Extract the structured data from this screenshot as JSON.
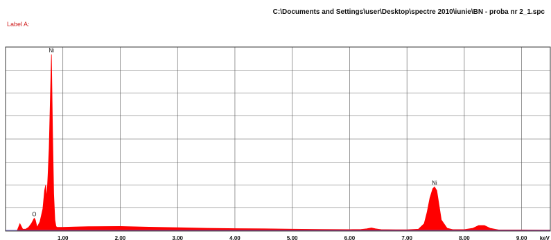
{
  "header": {
    "file_path": "C:\\Documents and Settings\\user\\Desktop\\spectre 2010\\iunie\\BN - proba nr 2_1.spc",
    "label_a": "Label A:"
  },
  "chart_data": {
    "type": "area",
    "title": "",
    "xlabel": "keV",
    "ylabel": "",
    "xlim": [
      0.0,
      9.5
    ],
    "ylim": [
      0,
      1
    ],
    "x_ticks": [
      "1.00",
      "2.00",
      "3.00",
      "4.00",
      "5.00",
      "6.00",
      "7.00",
      "8.00",
      "9.00"
    ],
    "x_tick_values": [
      1,
      2,
      3,
      4,
      5,
      6,
      7,
      8,
      9
    ],
    "grid": true,
    "series": [
      {
        "color": "#ff0000",
        "x": [
          0.0,
          0.2,
          0.25,
          0.3,
          0.35,
          0.4,
          0.45,
          0.5,
          0.52,
          0.55,
          0.6,
          0.65,
          0.68,
          0.7,
          0.72,
          0.74,
          0.76,
          0.78,
          0.8,
          0.82,
          0.84,
          0.86,
          0.88,
          0.9,
          0.95,
          1.0,
          1.2,
          1.5,
          2.0,
          2.5,
          3.0,
          3.5,
          4.0,
          4.5,
          5.0,
          5.5,
          6.0,
          6.2,
          6.3,
          6.38,
          6.45,
          6.55,
          6.8,
          7.0,
          7.2,
          7.3,
          7.35,
          7.4,
          7.45,
          7.48,
          7.52,
          7.56,
          7.6,
          7.7,
          7.8,
          8.0,
          8.15,
          8.25,
          8.35,
          8.45,
          8.6,
          9.0,
          9.5
        ],
        "y": [
          0.0,
          0.0,
          0.04,
          0.01,
          0.01,
          0.02,
          0.04,
          0.07,
          0.06,
          0.02,
          0.05,
          0.12,
          0.22,
          0.25,
          0.18,
          0.3,
          0.45,
          0.7,
          0.96,
          0.55,
          0.2,
          0.06,
          0.025,
          0.02,
          0.02,
          0.02,
          0.022,
          0.024,
          0.025,
          0.021,
          0.018,
          0.015,
          0.013,
          0.012,
          0.01,
          0.009,
          0.008,
          0.009,
          0.012,
          0.017,
          0.012,
          0.008,
          0.007,
          0.007,
          0.01,
          0.04,
          0.1,
          0.18,
          0.23,
          0.24,
          0.22,
          0.14,
          0.06,
          0.015,
          0.008,
          0.008,
          0.015,
          0.03,
          0.03,
          0.015,
          0.006,
          0.006,
          0.005
        ]
      }
    ],
    "peak_labels": [
      {
        "text": "Ni",
        "x": 0.8,
        "y": 0.96
      },
      {
        "text": "O",
        "x": 0.5,
        "y": 0.07
      },
      {
        "text": "Ni",
        "x": 7.48,
        "y": 0.24
      }
    ]
  }
}
